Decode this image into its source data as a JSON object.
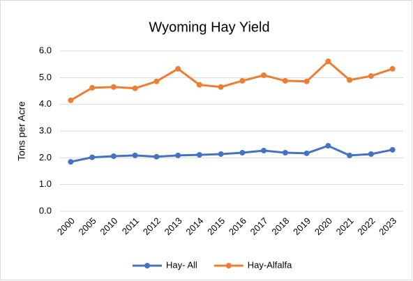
{
  "chart_data": {
    "type": "line",
    "title": "Wyoming Hay Yield",
    "y_label": "Tons per Acre",
    "categories": [
      "2000",
      "2005",
      "2010",
      "2011",
      "2012",
      "2013",
      "2014",
      "2015",
      "2016",
      "2017",
      "2018",
      "2019",
      "2020",
      "2021",
      "2022",
      "2023"
    ],
    "series": [
      {
        "name": "Hay- All",
        "color": "#4472c4",
        "values": [
          1.85,
          2.02,
          2.06,
          2.09,
          2.04,
          2.09,
          2.11,
          2.14,
          2.19,
          2.27,
          2.19,
          2.17,
          2.45,
          2.09,
          2.14,
          2.3
        ]
      },
      {
        "name": "Hay-Alfalfa",
        "color": "#ed7d31",
        "values": [
          4.15,
          4.62,
          4.65,
          4.6,
          4.86,
          5.33,
          4.73,
          4.65,
          4.88,
          5.09,
          4.88,
          4.86,
          5.61,
          4.91,
          5.06,
          5.33
        ]
      }
    ],
    "ylim": [
      0,
      6
    ],
    "yticks": [
      {
        "value": 0,
        "label": "0.0"
      },
      {
        "value": 1,
        "label": "1.0"
      },
      {
        "value": 2,
        "label": "2.0"
      },
      {
        "value": 3,
        "label": "3.0"
      },
      {
        "value": 4,
        "label": "4.0"
      },
      {
        "value": 5,
        "label": "5.0"
      },
      {
        "value": 6,
        "label": "6.0"
      }
    ],
    "grid": true,
    "legend": "bottom"
  }
}
